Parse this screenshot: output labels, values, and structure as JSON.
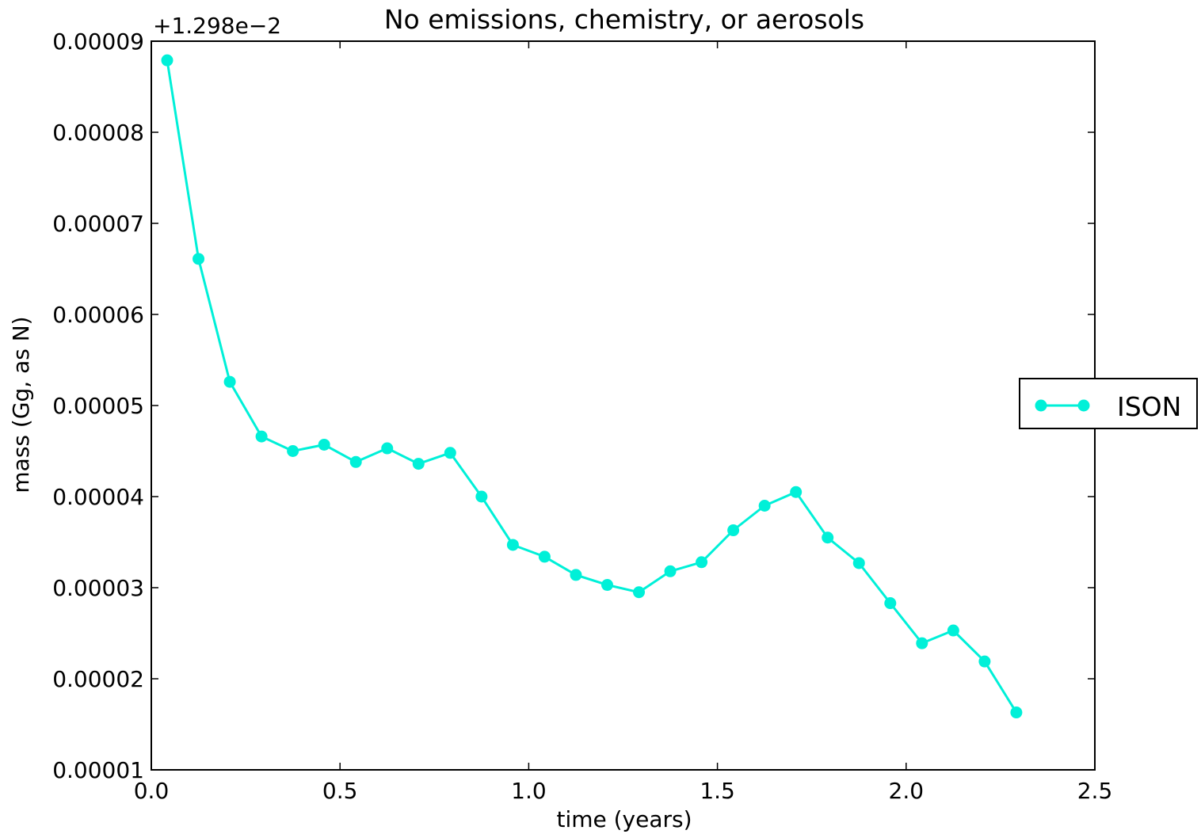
{
  "chart_data": {
    "type": "line",
    "title": "No emissions, chemistry, or aerosols",
    "xlabel": "time (years)",
    "ylabel": "mass (Gg, as N)",
    "y_offset_text": "+1.298e−2",
    "xlim": [
      0.0,
      2.5
    ],
    "ylim": [
      1e-05,
      9e-05
    ],
    "x_ticks": [
      0.0,
      0.5,
      1.0,
      1.5,
      2.0,
      2.5
    ],
    "x_tick_labels": [
      "0.0",
      "0.5",
      "1.0",
      "1.5",
      "2.0",
      "2.5"
    ],
    "y_ticks": [
      1e-05,
      2e-05,
      3e-05,
      4e-05,
      5e-05,
      6e-05,
      7e-05,
      8e-05,
      9e-05
    ],
    "y_tick_labels": [
      "0.00001",
      "0.00002",
      "0.00003",
      "0.00004",
      "0.00005",
      "0.00006",
      "0.00007",
      "0.00008",
      "0.00009"
    ],
    "grid": false,
    "legend_position": "right, outside plot area",
    "series": [
      {
        "name": "ISON",
        "color": "#00f0d8",
        "marker": "circle",
        "x": [
          0.042,
          0.125,
          0.208,
          0.292,
          0.375,
          0.458,
          0.542,
          0.625,
          0.708,
          0.792,
          0.875,
          0.958,
          1.042,
          1.125,
          1.208,
          1.292,
          1.375,
          1.458,
          1.542,
          1.625,
          1.708,
          1.792,
          1.875,
          1.958,
          2.042,
          2.125,
          2.208,
          2.292
        ],
        "y": [
          8.79e-05,
          6.61e-05,
          5.26e-05,
          4.66e-05,
          4.5e-05,
          4.57e-05,
          4.38e-05,
          4.53e-05,
          4.36e-05,
          4.48e-05,
          4e-05,
          3.47e-05,
          3.34e-05,
          3.14e-05,
          3.03e-05,
          2.95e-05,
          3.18e-05,
          3.28e-05,
          3.63e-05,
          3.9e-05,
          4.05e-05,
          3.55e-05,
          3.27e-05,
          2.83e-05,
          2.39e-05,
          2.53e-05,
          2.19e-05,
          1.63e-05
        ]
      }
    ]
  }
}
